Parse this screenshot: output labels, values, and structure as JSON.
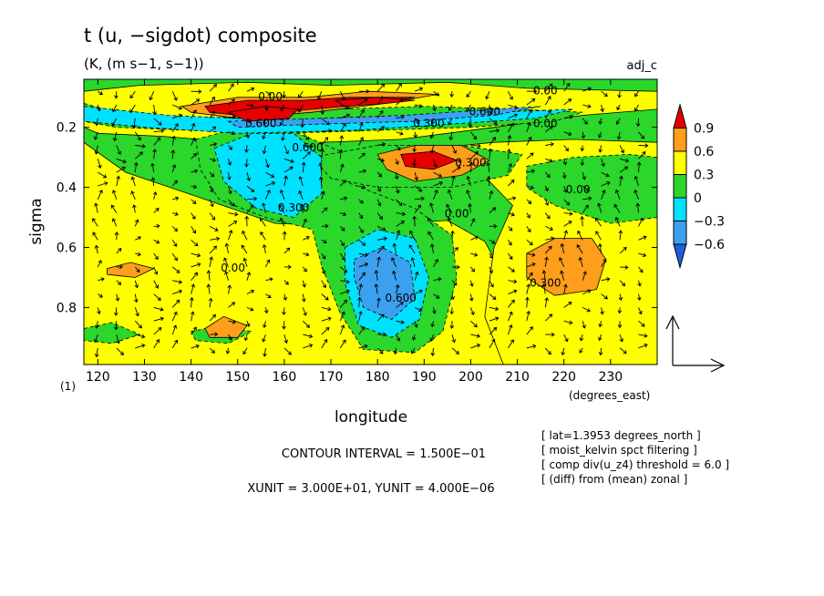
{
  "chart_data": {
    "type": "heatmap",
    "title": "t (u, −sigdot) composite",
    "subtitle": "(K, (m s−1, s−1))",
    "tag": "adj_c",
    "xlabel": "longitude",
    "ylabel": "sigma",
    "x_unit_label": "(degrees_east)",
    "y_extra_label": "(1)",
    "xlim": [
      117,
      240
    ],
    "ylim": [
      0.04,
      0.99
    ],
    "y_reversed": true,
    "x_ticks": [
      120,
      130,
      140,
      150,
      160,
      170,
      180,
      190,
      200,
      210,
      220,
      230
    ],
    "y_ticks": [
      0.2,
      0.4,
      0.6,
      0.8
    ],
    "colorbar": {
      "levels": [
        -0.9,
        -0.6,
        -0.3,
        0,
        0.3,
        0.6,
        0.9
      ],
      "tick_labels": [
        "0.9",
        "0.6",
        "0.3",
        "0",
        "−0.3",
        "−0.6"
      ],
      "colors": [
        "#1e5fdc",
        "#3ca0f0",
        "#00e1ff",
        "#2ad72a",
        "#ffff00",
        "#ff9e1a",
        "#e60000"
      ]
    },
    "contour_labels": [
      {
        "text": "0.00",
        "x": 157,
        "y": 0.11
      },
      {
        "text": "0.00",
        "x": 216,
        "y": 0.09
      },
      {
        "text": "0.00",
        "x": 216,
        "y": 0.2
      },
      {
        "text": "0.600",
        "x": 203,
        "y": 0.16
      },
      {
        "text": "0.300",
        "x": 191,
        "y": 0.2
      },
      {
        "text": "0.600",
        "x": 155,
        "y": 0.2
      },
      {
        "text": "0.600",
        "x": 165,
        "y": 0.28
      },
      {
        "text": "0.300",
        "x": 200,
        "y": 0.33
      },
      {
        "text": "0.00",
        "x": 223,
        "y": 0.42
      },
      {
        "text": "0.300",
        "x": 162,
        "y": 0.48
      },
      {
        "text": "0.00",
        "x": 197,
        "y": 0.5
      },
      {
        "text": "0.00",
        "x": 149,
        "y": 0.68
      },
      {
        "text": "0.300",
        "x": 216,
        "y": 0.73
      },
      {
        "text": "0.600",
        "x": 185,
        "y": 0.78
      }
    ],
    "filled_regions": [
      {
        "value": -0.05,
        "points": [
          [
            117,
            0.04
          ],
          [
            240,
            0.04
          ],
          [
            240,
            0.99
          ],
          [
            117,
            0.99
          ]
        ]
      },
      {
        "value": 0.1,
        "points": [
          [
            117,
            0.08
          ],
          [
            129,
            0.06
          ],
          [
            152,
            0.05
          ],
          [
            170,
            0.06
          ],
          [
            195,
            0.05
          ],
          [
            212,
            0.07
          ],
          [
            240,
            0.08
          ],
          [
            240,
            0.14
          ],
          [
            224,
            0.16
          ],
          [
            205,
            0.2
          ],
          [
            185,
            0.24
          ],
          [
            168,
            0.25
          ],
          [
            150,
            0.25
          ],
          [
            134,
            0.23
          ],
          [
            120,
            0.22
          ],
          [
            117,
            0.2
          ]
        ]
      },
      {
        "value": 0.1,
        "points": [
          [
            117,
            0.25
          ],
          [
            126,
            0.35
          ],
          [
            143,
            0.44
          ],
          [
            158,
            0.52
          ],
          [
            175,
            0.53
          ],
          [
            195,
            0.51
          ],
          [
            203,
            0.58
          ],
          [
            209,
            0.75
          ],
          [
            213,
            0.99
          ],
          [
            117,
            0.99
          ]
        ]
      },
      {
        "value": 0.1,
        "points": [
          [
            185,
            0.28
          ],
          [
            205,
            0.25
          ],
          [
            222,
            0.24
          ],
          [
            240,
            0.25
          ],
          [
            240,
            0.99
          ],
          [
            207,
            0.99
          ],
          [
            203,
            0.83
          ],
          [
            205,
            0.6
          ],
          [
            209,
            0.46
          ],
          [
            204,
            0.38
          ],
          [
            193,
            0.32
          ]
        ]
      },
      {
        "value": -0.1,
        "points": [
          [
            117,
            0.12
          ],
          [
            126,
            0.16
          ],
          [
            142,
            0.17
          ],
          [
            156,
            0.16
          ],
          [
            170,
            0.14
          ],
          [
            190,
            0.13
          ],
          [
            210,
            0.14
          ],
          [
            224,
            0.15
          ],
          [
            218,
            0.18
          ],
          [
            200,
            0.2
          ],
          [
            180,
            0.21
          ],
          [
            160,
            0.22
          ],
          [
            140,
            0.21
          ],
          [
            124,
            0.2
          ],
          [
            117,
            0.18
          ]
        ]
      },
      {
        "value": -0.1,
        "points": [
          [
            141,
            0.24
          ],
          [
            151,
            0.2
          ],
          [
            163,
            0.22
          ],
          [
            172,
            0.28
          ],
          [
            173,
            0.38
          ],
          [
            188,
            0.47
          ],
          [
            196,
            0.56
          ],
          [
            197,
            0.7
          ],
          [
            194,
            0.88
          ],
          [
            188,
            0.95
          ],
          [
            177,
            0.94
          ],
          [
            172,
            0.82
          ],
          [
            168,
            0.66
          ],
          [
            166,
            0.54
          ],
          [
            156,
            0.5
          ],
          [
            146,
            0.44
          ],
          [
            142,
            0.34
          ]
        ]
      },
      {
        "value": -0.1,
        "points": [
          [
            212,
            0.33
          ],
          [
            222,
            0.3
          ],
          [
            234,
            0.29
          ],
          [
            240,
            0.3
          ],
          [
            240,
            0.5
          ],
          [
            230,
            0.52
          ],
          [
            218,
            0.46
          ],
          [
            212,
            0.4
          ]
        ]
      },
      {
        "value": -0.1,
        "points": [
          [
            117,
            0.87
          ],
          [
            123,
            0.85
          ],
          [
            129,
            0.89
          ],
          [
            123,
            0.92
          ],
          [
            117,
            0.91
          ]
        ]
      },
      {
        "value": -0.1,
        "points": [
          [
            166,
            0.3
          ],
          [
            180,
            0.26
          ],
          [
            198,
            0.26
          ],
          [
            211,
            0.29
          ],
          [
            208,
            0.36
          ],
          [
            196,
            0.4
          ],
          [
            180,
            0.4
          ],
          [
            170,
            0.37
          ]
        ]
      },
      {
        "value": -0.1,
        "points": [
          [
            140,
            0.88
          ],
          [
            146,
            0.86
          ],
          [
            153,
            0.88
          ],
          [
            148,
            0.92
          ],
          [
            141,
            0.91
          ]
        ]
      },
      {
        "value": -0.4,
        "points": [
          [
            117,
            0.13
          ],
          [
            135,
            0.16
          ],
          [
            150,
            0.17
          ],
          [
            166,
            0.18
          ],
          [
            188,
            0.17
          ],
          [
            205,
            0.15
          ],
          [
            222,
            0.14
          ],
          [
            214,
            0.17
          ],
          [
            195,
            0.19
          ],
          [
            175,
            0.21
          ],
          [
            150,
            0.22
          ],
          [
            130,
            0.2
          ],
          [
            117,
            0.18
          ]
        ]
      },
      {
        "value": -0.4,
        "points": [
          [
            145,
            0.27
          ],
          [
            153,
            0.22
          ],
          [
            162,
            0.22
          ],
          [
            168,
            0.3
          ],
          [
            168,
            0.42
          ],
          [
            162,
            0.5
          ],
          [
            154,
            0.47
          ],
          [
            147,
            0.38
          ]
        ]
      },
      {
        "value": -0.4,
        "points": [
          [
            173,
            0.6
          ],
          [
            180,
            0.54
          ],
          [
            188,
            0.57
          ],
          [
            191,
            0.7
          ],
          [
            189,
            0.84
          ],
          [
            183,
            0.9
          ],
          [
            176,
            0.86
          ],
          [
            173,
            0.72
          ]
        ]
      },
      {
        "value": -0.7,
        "points": [
          [
            148,
            0.18
          ],
          [
            168,
            0.17
          ],
          [
            186,
            0.16
          ],
          [
            205,
            0.14
          ],
          [
            215,
            0.13
          ],
          [
            205,
            0.16
          ],
          [
            188,
            0.18
          ],
          [
            166,
            0.19
          ],
          [
            150,
            0.2
          ]
        ]
      },
      {
        "value": -0.7,
        "points": [
          [
            175,
            0.64
          ],
          [
            181,
            0.6
          ],
          [
            187,
            0.65
          ],
          [
            188,
            0.77
          ],
          [
            183,
            0.84
          ],
          [
            177,
            0.8
          ],
          [
            175,
            0.7
          ]
        ]
      },
      {
        "value": 0.4,
        "points": [
          [
            138,
            0.13
          ],
          [
            150,
            0.1
          ],
          [
            165,
            0.1
          ],
          [
            178,
            0.08
          ],
          [
            193,
            0.09
          ],
          [
            182,
            0.12
          ],
          [
            166,
            0.15
          ],
          [
            150,
            0.17
          ],
          [
            140,
            0.15
          ]
        ]
      },
      {
        "value": 0.4,
        "points": [
          [
            180,
            0.29
          ],
          [
            188,
            0.26
          ],
          [
            198,
            0.26
          ],
          [
            204,
            0.31
          ],
          [
            198,
            0.36
          ],
          [
            188,
            0.38
          ],
          [
            182,
            0.34
          ]
        ]
      },
      {
        "value": 0.4,
        "points": [
          [
            212,
            0.62
          ],
          [
            218,
            0.57
          ],
          [
            226,
            0.57
          ],
          [
            229,
            0.64
          ],
          [
            227,
            0.74
          ],
          [
            218,
            0.76
          ],
          [
            212,
            0.7
          ]
        ]
      },
      {
        "value": 0.4,
        "points": [
          [
            122,
            0.67
          ],
          [
            127,
            0.65
          ],
          [
            132,
            0.67
          ],
          [
            128,
            0.7
          ],
          [
            122,
            0.69
          ]
        ]
      },
      {
        "value": 0.4,
        "points": [
          [
            143,
            0.87
          ],
          [
            147,
            0.83
          ],
          [
            152,
            0.86
          ],
          [
            150,
            0.9
          ],
          [
            144,
            0.9
          ]
        ]
      },
      {
        "value": 0.7,
        "points": [
          [
            143,
            0.13
          ],
          [
            152,
            0.11
          ],
          [
            164,
            0.11
          ],
          [
            174,
            0.1
          ],
          [
            188,
            0.1
          ],
          [
            180,
            0.12
          ],
          [
            166,
            0.14
          ],
          [
            150,
            0.16
          ],
          [
            144,
            0.15
          ]
        ]
      },
      {
        "value": 0.7,
        "points": [
          [
            185,
            0.29
          ],
          [
            192,
            0.28
          ],
          [
            197,
            0.31
          ],
          [
            192,
            0.34
          ],
          [
            186,
            0.33
          ]
        ]
      },
      {
        "value": 0.95,
        "points": [
          [
            148,
            0.15
          ],
          [
            156,
            0.13
          ],
          [
            163,
            0.14
          ],
          [
            161,
            0.17
          ],
          [
            152,
            0.18
          ]
        ]
      },
      {
        "value": 0.95,
        "points": [
          [
            171,
            0.11
          ],
          [
            180,
            0.1
          ],
          [
            188,
            0.11
          ],
          [
            182,
            0.12
          ],
          [
            173,
            0.13
          ]
        ]
      }
    ],
    "wind_vector_grid": {
      "x_start": 120,
      "x_step": 4,
      "x_count": 30,
      "y_start": 0.08,
      "y_step": 0.045,
      "y_count": 20
    },
    "vector_legend": {
      "xunit": "3.000E+01",
      "yunit": "4.000E−06"
    },
    "contour_interval_text": "CONTOUR INTERVAL = 1.500E−01",
    "units_text": "XUNIT = 3.000E+01, YUNIT = 4.000E−06",
    "info_lines": [
      "[ lat=1.3953 degrees_north ]",
      "[ moist_kelvin spct filtering ]",
      "[ comp div(u_z4) threshold = 6.0 ]",
      "[ (diff) from (mean) zonal ]"
    ]
  }
}
